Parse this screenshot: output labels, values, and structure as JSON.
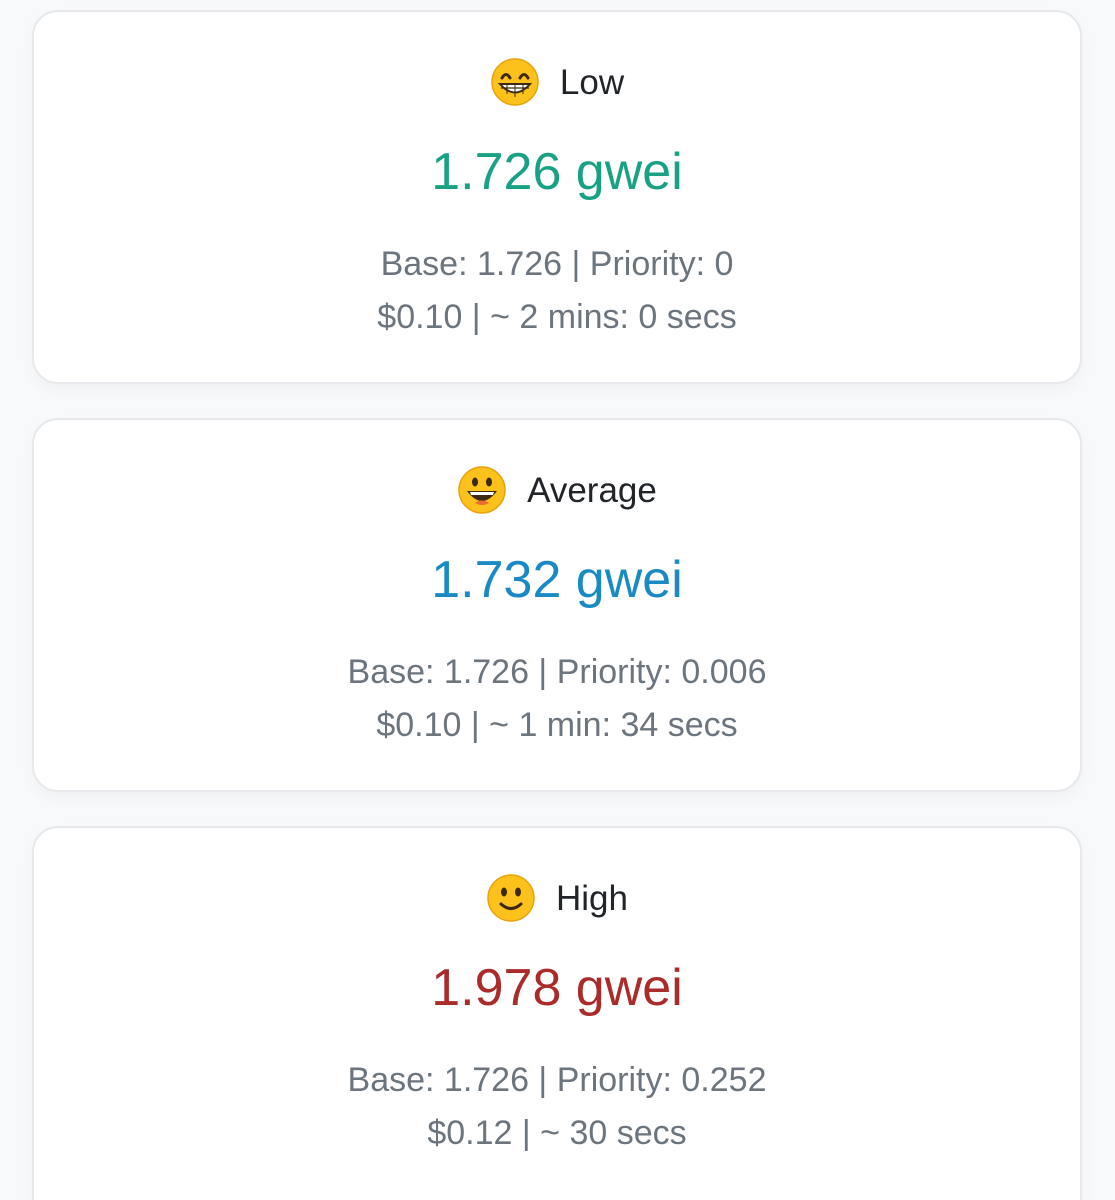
{
  "tiers": {
    "low": {
      "label": "Low",
      "emoji": "grinning-face-with-smiling-eyes-icon",
      "price": "1.726 gwei",
      "breakdown": "Base: 1.726 | Priority: 0",
      "cost_time": "$0.10 | ~ 2 mins: 0 secs",
      "color": "#18a183"
    },
    "average": {
      "label": "Average",
      "emoji": "grinning-face-icon",
      "price": "1.732 gwei",
      "breakdown": "Base: 1.726 | Priority: 0.006",
      "cost_time": "$0.10 | ~ 1 min: 34 secs",
      "color": "#1a8ac5"
    },
    "high": {
      "label": "High",
      "emoji": "slightly-smiling-face-icon",
      "price": "1.978 gwei",
      "breakdown": "Base: 1.726 | Priority: 0.252",
      "cost_time": "$0.12 | ~ 30 secs",
      "color": "#ab2a2a"
    }
  }
}
